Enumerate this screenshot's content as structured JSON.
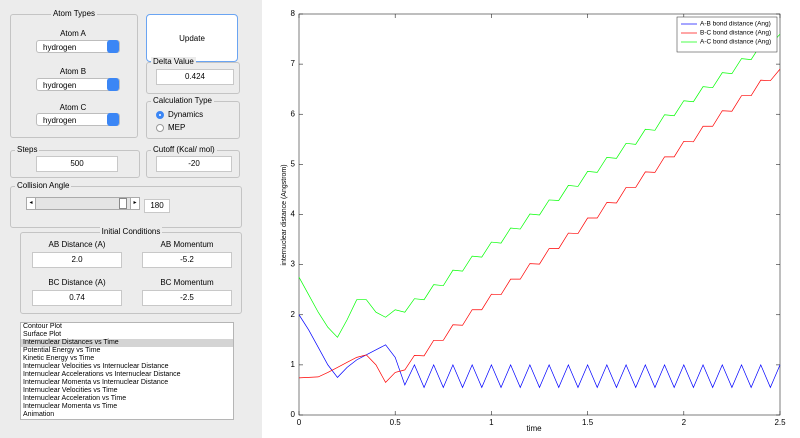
{
  "atom_types": {
    "title": "Atom Types",
    "atoms": [
      {
        "label": "Atom A",
        "value": "hydrogen"
      },
      {
        "label": "Atom B",
        "value": "hydrogen"
      },
      {
        "label": "Atom C",
        "value": "hydrogen"
      }
    ]
  },
  "update_button": "Update",
  "delta_value": {
    "title": "Delta Value",
    "value": "0.424"
  },
  "calculation_type": {
    "title": "Calculation Type",
    "options": [
      "Dynamics",
      "MEP"
    ],
    "selected": 0
  },
  "steps": {
    "title": "Steps",
    "value": "500"
  },
  "cutoff": {
    "title": "Cutoff (Kcal/ mol)",
    "value": "-20"
  },
  "collision_angle": {
    "title": "Collision Angle",
    "value": "180"
  },
  "initial_conditions": {
    "title": "Initial Conditions",
    "fields": [
      {
        "label": "AB Distance (A)",
        "value": "2.0"
      },
      {
        "label": "AB Momentum",
        "value": "-5.2"
      },
      {
        "label": "BC Distance (A)",
        "value": "0.74"
      },
      {
        "label": "BC Momentum",
        "value": "-2.5"
      }
    ]
  },
  "plot_list": {
    "items": [
      "Contour Plot",
      "Surface Plot",
      "Internuclear Distances vs Time",
      "Potential Energy vs Time",
      "Kinetic Energy vs Time",
      "Internuclear Velocities vs Internuclear Distance",
      "Internuclear Accelerations vs Internuclear Distance",
      "Internuclear Momenta vs Internuclear Distance",
      "Internuclear Velocities vs Time",
      "Internuclear Acceleration vs Time",
      "Internuclear Momenta vs Time",
      "Animation"
    ],
    "selected": 2
  },
  "chart_data": {
    "type": "line",
    "x_label": "time",
    "y_label": "internuclear distance (Angstrom)",
    "x": [
      0,
      0.05,
      0.1,
      0.15,
      0.2,
      0.25,
      0.3,
      0.35,
      0.4,
      0.45,
      0.5,
      0.55,
      0.6,
      0.65,
      0.7,
      0.75,
      0.8,
      0.85,
      0.9,
      0.95,
      1,
      1.05,
      1.1,
      1.15,
      1.2,
      1.25,
      1.3,
      1.35,
      1.4,
      1.45,
      1.5,
      1.55,
      1.6,
      1.65,
      1.7,
      1.75,
      1.8,
      1.85,
      1.9,
      1.95,
      2,
      2.05,
      2.1,
      2.15,
      2.2,
      2.25,
      2.3,
      2.35,
      2.4,
      2.45,
      2.5
    ],
    "series": [
      {
        "name": "A-B bond distance (Ang)",
        "color": "#0000ff",
        "values": [
          2.0,
          1.7,
          1.35,
          1.0,
          0.75,
          0.95,
          1.1,
          1.2,
          1.3,
          1.4,
          1.15,
          0.6,
          1.0,
          0.55,
          1.0,
          0.55,
          1.0,
          0.55,
          1.0,
          0.55,
          1.0,
          0.55,
          1.0,
          0.55,
          1.0,
          0.55,
          1.0,
          0.55,
          1.0,
          0.55,
          1.0,
          0.55,
          1.0,
          0.55,
          1.0,
          0.55,
          1.0,
          0.55,
          1.0,
          0.55,
          1.0,
          0.55,
          1.0,
          0.55,
          1.0,
          0.55,
          1.0,
          0.55,
          1.0,
          0.55,
          1.0
        ]
      },
      {
        "name": "B-C bond distance (Ang)",
        "color": "#ff0000",
        "values": [
          0.74,
          0.75,
          0.76,
          0.85,
          0.95,
          1.05,
          1.15,
          1.2,
          1.0,
          0.65,
          0.85,
          0.9,
          1.19,
          1.18,
          1.49,
          1.49,
          1.8,
          1.79,
          2.1,
          2.1,
          2.41,
          2.4,
          2.71,
          2.71,
          3.02,
          3.01,
          3.32,
          3.32,
          3.63,
          3.62,
          3.93,
          3.93,
          4.24,
          4.23,
          4.54,
          4.54,
          4.85,
          4.84,
          5.15,
          5.15,
          5.46,
          5.45,
          5.76,
          5.76,
          6.07,
          6.06,
          6.37,
          6.37,
          6.68,
          6.67,
          6.9
        ]
      },
      {
        "name": "A-C bond distance (Ang)",
        "color": "#00ff00",
        "values": [
          2.75,
          2.4,
          2.05,
          1.75,
          1.55,
          1.9,
          2.3,
          2.3,
          2.05,
          1.95,
          2.1,
          2.05,
          2.32,
          2.3,
          2.6,
          2.58,
          2.89,
          2.87,
          3.17,
          3.15,
          3.45,
          3.43,
          3.73,
          3.71,
          4.01,
          3.99,
          4.29,
          4.28,
          4.58,
          4.56,
          4.86,
          4.84,
          5.14,
          5.12,
          5.42,
          5.4,
          5.7,
          5.68,
          5.99,
          5.97,
          6.27,
          6.25,
          6.55,
          6.53,
          6.83,
          6.81,
          7.11,
          7.09,
          7.39,
          7.38,
          7.6
        ]
      }
    ],
    "xlim": [
      0,
      2.5
    ],
    "ylim": [
      0,
      8
    ],
    "xticks": [
      0,
      0.5,
      1,
      1.5,
      2,
      2.5
    ],
    "yticks": [
      0,
      1,
      2,
      3,
      4,
      5,
      6,
      7,
      8
    ],
    "legend": "upper right"
  }
}
